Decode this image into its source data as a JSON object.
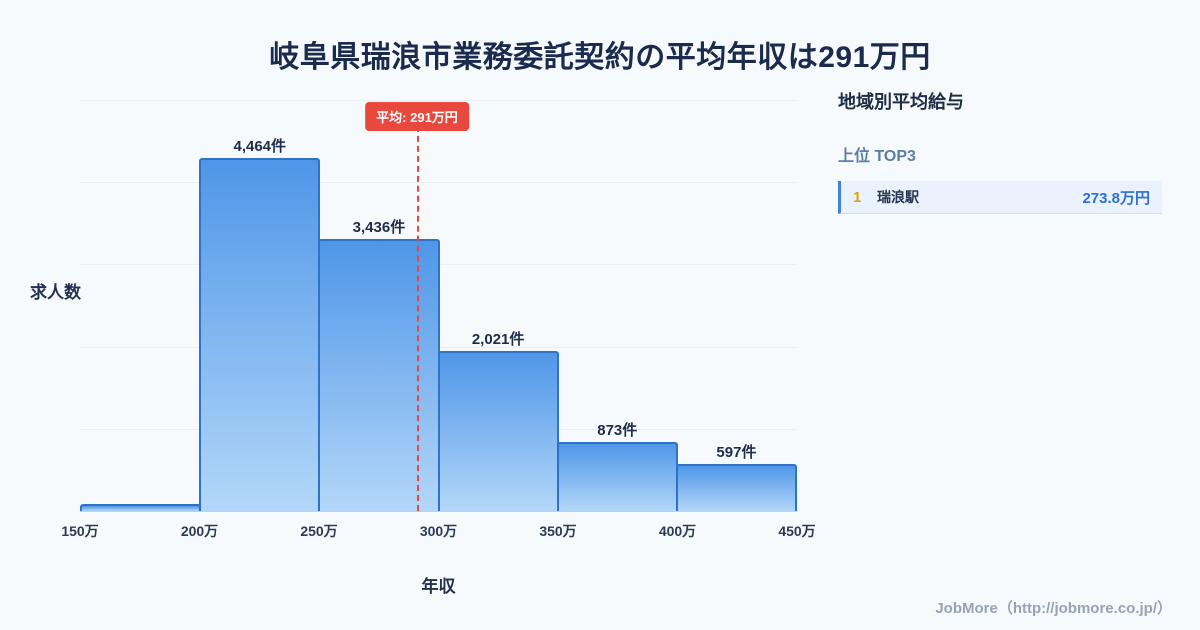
{
  "title": "岐阜県瑞浪市業務委託契約の平均年収は291万円",
  "chart_data": {
    "type": "bar",
    "title": "岐阜県瑞浪市業務委託契約の平均年収は291万円",
    "ylabel": "求人数",
    "xlabel": "年収",
    "x_tick_labels": [
      "150万",
      "200万",
      "250万",
      "300万",
      "350万",
      "400万",
      "450万"
    ],
    "bins": [
      {
        "range": "150万-200万",
        "value": 90,
        "label": ""
      },
      {
        "range": "200万-250万",
        "value": 4464,
        "label": "4,464件"
      },
      {
        "range": "250万-300万",
        "value": 3436,
        "label": "3,436件"
      },
      {
        "range": "300万-350万",
        "value": 2021,
        "label": "2,021件"
      },
      {
        "range": "350万-400万",
        "value": 873,
        "label": "873件"
      },
      {
        "range": "400万-450万",
        "value": 597,
        "label": "597件"
      }
    ],
    "ylim": [
      0,
      5200
    ],
    "grid": true,
    "legend": null,
    "average_line": {
      "label": "平均: 291万円",
      "value": 291,
      "axis_min": 150,
      "axis_max": 450
    }
  },
  "side_panel": {
    "title": "地域別平均給与",
    "subtitle": "上位 TOP3",
    "items": [
      {
        "rank": "1",
        "name": "瑞浪駅",
        "value": "273.8万円"
      }
    ]
  },
  "footer": {
    "credit": "JobMore（http://jobmore.co.jp/）"
  },
  "colors": {
    "bar_top": "#4f96e8",
    "bar_bottom": "#b3d7f9",
    "bar_border": "#2f72c6",
    "average_line": "#e8483d",
    "accent_blue": "#2d6fd2",
    "rank_gold": "#d9a516",
    "background": "#f7fafd"
  }
}
